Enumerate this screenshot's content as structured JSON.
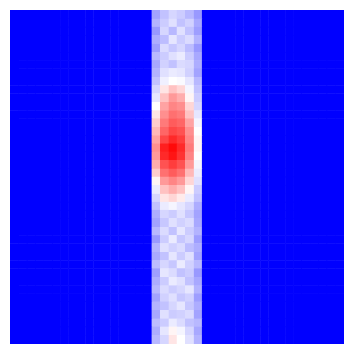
{
  "chart_data": {
    "type": "heatmap",
    "tick_labels": false,
    "zlim": [
      0,
      1
    ],
    "cells": [
      [
        0,
        0,
        0,
        0,
        0,
        0,
        0,
        0,
        0,
        0,
        0,
        0,
        0,
        0,
        0,
        0,
        0,
        0.32,
        0.38,
        0.42,
        0.4,
        0.36,
        0.3,
        0,
        0,
        0,
        0,
        0,
        0,
        0,
        0,
        0,
        0,
        0,
        0,
        0,
        0,
        0,
        0,
        0
      ],
      [
        0,
        0,
        0,
        0,
        0,
        0,
        0,
        0,
        0,
        0,
        0,
        0,
        0,
        0,
        0,
        0,
        0,
        0.35,
        0.4,
        0.44,
        0.38,
        0.41,
        0.33,
        0,
        0,
        0,
        0,
        0,
        0,
        0,
        0,
        0,
        0,
        0,
        0,
        0,
        0,
        0,
        0,
        0
      ],
      [
        0,
        0,
        0,
        0,
        0,
        0,
        0,
        0,
        0,
        0,
        0,
        0,
        0,
        0,
        0,
        0,
        0,
        0.3,
        0.42,
        0.36,
        0.44,
        0.38,
        0.31,
        0,
        0,
        0,
        0,
        0,
        0,
        0,
        0,
        0,
        0,
        0,
        0,
        0,
        0,
        0,
        0,
        0
      ],
      [
        0,
        0,
        0,
        0,
        0,
        0,
        0,
        0,
        0,
        0,
        0,
        0,
        0,
        0,
        0,
        0,
        0,
        0.34,
        0.37,
        0.45,
        0.4,
        0.43,
        0.35,
        0,
        0,
        0,
        0,
        0,
        0,
        0,
        0,
        0,
        0,
        0,
        0,
        0,
        0,
        0,
        0,
        0
      ],
      [
        0,
        0,
        0,
        0,
        0,
        0,
        0,
        0,
        0,
        0,
        0,
        0,
        0,
        0,
        0,
        0,
        0,
        0.31,
        0.43,
        0.39,
        0.42,
        0.37,
        0.3,
        0,
        0,
        0,
        0,
        0,
        0,
        0,
        0,
        0,
        0,
        0,
        0,
        0,
        0,
        0,
        0,
        0
      ],
      [
        0,
        0,
        0,
        0,
        0,
        0,
        0,
        0,
        0,
        0,
        0,
        0,
        0,
        0,
        0,
        0,
        0,
        0.36,
        0.4,
        0.44,
        0.46,
        0.4,
        0.33,
        0,
        0,
        0,
        0,
        0,
        0,
        0,
        0,
        0,
        0,
        0,
        0,
        0,
        0,
        0,
        0,
        0
      ],
      [
        0,
        0,
        0,
        0,
        0,
        0,
        0,
        0,
        0,
        0,
        0,
        0,
        0,
        0,
        0,
        0,
        0,
        0.33,
        0.41,
        0.38,
        0.43,
        0.42,
        0.34,
        0,
        0,
        0,
        0,
        0,
        0,
        0,
        0,
        0,
        0,
        0,
        0,
        0,
        0,
        0,
        0,
        0
      ],
      [
        0,
        0,
        0,
        0,
        0,
        0,
        0,
        0,
        0,
        0,
        0,
        0,
        0,
        0,
        0,
        0,
        0,
        0.35,
        0.44,
        0.46,
        0.45,
        0.41,
        0.32,
        0,
        0,
        0,
        0,
        0,
        0,
        0,
        0,
        0,
        0,
        0,
        0,
        0,
        0,
        0,
        0,
        0
      ],
      [
        0,
        0,
        0,
        0,
        0,
        0,
        0,
        0,
        0,
        0,
        0,
        0,
        0,
        0,
        0,
        0,
        0,
        0.38,
        0.47,
        0.5,
        0.49,
        0.45,
        0.36,
        0,
        0,
        0,
        0,
        0,
        0,
        0,
        0,
        0,
        0,
        0,
        0,
        0,
        0,
        0,
        0,
        0
      ],
      [
        0,
        0,
        0,
        0,
        0,
        0,
        0,
        0,
        0,
        0,
        0,
        0,
        0,
        0,
        0,
        0,
        0,
        0.42,
        0.55,
        0.62,
        0.58,
        0.48,
        0.38,
        0,
        0,
        0,
        0,
        0,
        0,
        0,
        0,
        0,
        0,
        0,
        0,
        0,
        0,
        0,
        0,
        0
      ],
      [
        0,
        0,
        0,
        0,
        0,
        0,
        0,
        0,
        0,
        0,
        0,
        0,
        0,
        0,
        0,
        0,
        0,
        0.45,
        0.62,
        0.7,
        0.66,
        0.52,
        0.4,
        0,
        0,
        0,
        0,
        0,
        0,
        0,
        0,
        0,
        0,
        0,
        0,
        0,
        0,
        0,
        0,
        0
      ],
      [
        0,
        0,
        0,
        0,
        0,
        0,
        0,
        0,
        0,
        0,
        0,
        0,
        0,
        0,
        0,
        0,
        0,
        0.5,
        0.68,
        0.74,
        0.72,
        0.58,
        0.42,
        0,
        0,
        0,
        0,
        0,
        0,
        0,
        0,
        0,
        0,
        0,
        0,
        0,
        0,
        0,
        0,
        0
      ],
      [
        0,
        0,
        0,
        0,
        0,
        0,
        0,
        0,
        0,
        0,
        0,
        0,
        0,
        0,
        0,
        0,
        0,
        0.55,
        0.72,
        0.78,
        0.76,
        0.62,
        0.45,
        0,
        0,
        0,
        0,
        0,
        0,
        0,
        0,
        0,
        0,
        0,
        0,
        0,
        0,
        0,
        0,
        0
      ],
      [
        0,
        0,
        0,
        0,
        0,
        0,
        0,
        0,
        0,
        0,
        0,
        0,
        0,
        0,
        0,
        0,
        0,
        0.6,
        0.76,
        0.82,
        0.8,
        0.68,
        0.48,
        0,
        0,
        0,
        0,
        0,
        0,
        0,
        0,
        0,
        0,
        0,
        0,
        0,
        0,
        0,
        0,
        0
      ],
      [
        0,
        0,
        0,
        0,
        0,
        0,
        0,
        0,
        0,
        0,
        0,
        0,
        0,
        0,
        0,
        0,
        0,
        0.64,
        0.8,
        0.86,
        0.84,
        0.72,
        0.5,
        0,
        0,
        0,
        0,
        0,
        0,
        0,
        0,
        0,
        0,
        0,
        0,
        0,
        0,
        0,
        0,
        0
      ],
      [
        0,
        0,
        0,
        0,
        0,
        0,
        0,
        0,
        0,
        0,
        0,
        0,
        0,
        0,
        0,
        0,
        0,
        0.68,
        0.86,
        0.92,
        0.88,
        0.74,
        0.52,
        0,
        0,
        0,
        0,
        0,
        0,
        0,
        0,
        0,
        0,
        0,
        0,
        0,
        0,
        0,
        0,
        0
      ],
      [
        0,
        0,
        0,
        0,
        0,
        0,
        0,
        0,
        0,
        0,
        0,
        0,
        0,
        0,
        0,
        0,
        0,
        0.72,
        0.94,
        0.98,
        0.92,
        0.76,
        0.52,
        0,
        0,
        0,
        0,
        0,
        0,
        0,
        0,
        0,
        0,
        0,
        0,
        0,
        0,
        0,
        0,
        0
      ],
      [
        0,
        0,
        0,
        0,
        0,
        0,
        0,
        0,
        0,
        0,
        0,
        0,
        0,
        0,
        0,
        0,
        0,
        0.7,
        0.92,
        0.96,
        0.9,
        0.74,
        0.5,
        0,
        0,
        0,
        0,
        0,
        0,
        0,
        0,
        0,
        0,
        0,
        0,
        0,
        0,
        0,
        0,
        0
      ],
      [
        0,
        0,
        0,
        0,
        0,
        0,
        0,
        0,
        0,
        0,
        0,
        0,
        0,
        0,
        0,
        0,
        0,
        0.66,
        0.84,
        0.88,
        0.84,
        0.7,
        0.48,
        0,
        0,
        0,
        0,
        0,
        0,
        0,
        0,
        0,
        0,
        0,
        0,
        0,
        0,
        0,
        0,
        0
      ],
      [
        0,
        0,
        0,
        0,
        0,
        0,
        0,
        0,
        0,
        0,
        0,
        0,
        0,
        0,
        0,
        0,
        0,
        0.6,
        0.78,
        0.82,
        0.78,
        0.64,
        0.46,
        0,
        0,
        0,
        0,
        0,
        0,
        0,
        0,
        0,
        0,
        0,
        0,
        0,
        0,
        0,
        0,
        0
      ],
      [
        0,
        0,
        0,
        0,
        0,
        0,
        0,
        0,
        0,
        0,
        0,
        0,
        0,
        0,
        0,
        0,
        0,
        0.52,
        0.7,
        0.74,
        0.7,
        0.58,
        0.44,
        0,
        0,
        0,
        0,
        0,
        0,
        0,
        0,
        0,
        0,
        0,
        0,
        0,
        0,
        0,
        0,
        0
      ],
      [
        0,
        0,
        0,
        0,
        0,
        0,
        0,
        0,
        0,
        0,
        0,
        0,
        0,
        0,
        0,
        0,
        0,
        0.46,
        0.62,
        0.66,
        0.62,
        0.52,
        0.4,
        0,
        0,
        0,
        0,
        0,
        0,
        0,
        0,
        0,
        0,
        0,
        0,
        0,
        0,
        0,
        0,
        0
      ],
      [
        0,
        0,
        0,
        0,
        0,
        0,
        0,
        0,
        0,
        0,
        0,
        0,
        0,
        0,
        0,
        0,
        0,
        0.42,
        0.55,
        0.58,
        0.54,
        0.46,
        0.38,
        0,
        0,
        0,
        0,
        0,
        0,
        0,
        0,
        0,
        0,
        0,
        0,
        0,
        0,
        0,
        0,
        0
      ],
      [
        0,
        0,
        0,
        0,
        0,
        0,
        0,
        0,
        0,
        0,
        0,
        0,
        0,
        0,
        0,
        0,
        0,
        0.38,
        0.46,
        0.48,
        0.45,
        0.42,
        0.34,
        0,
        0,
        0,
        0,
        0,
        0,
        0,
        0,
        0,
        0,
        0,
        0,
        0,
        0,
        0,
        0,
        0
      ],
      [
        0,
        0,
        0,
        0,
        0,
        0,
        0,
        0,
        0,
        0,
        0,
        0,
        0,
        0,
        0,
        0,
        0,
        0.34,
        0.42,
        0.4,
        0.44,
        0.39,
        0.32,
        0,
        0,
        0,
        0,
        0,
        0,
        0,
        0,
        0,
        0,
        0,
        0,
        0,
        0,
        0,
        0,
        0
      ],
      [
        0,
        0,
        0,
        0,
        0,
        0,
        0,
        0,
        0,
        0,
        0,
        0,
        0,
        0,
        0,
        0,
        0,
        0.32,
        0.39,
        0.44,
        0.41,
        0.43,
        0.33,
        0,
        0,
        0,
        0,
        0,
        0,
        0,
        0,
        0,
        0,
        0,
        0,
        0,
        0,
        0,
        0,
        0
      ],
      [
        0,
        0,
        0,
        0,
        0,
        0,
        0,
        0,
        0,
        0,
        0,
        0,
        0,
        0,
        0,
        0,
        0,
        0.36,
        0.43,
        0.38,
        0.45,
        0.4,
        0.35,
        0,
        0,
        0,
        0,
        0,
        0,
        0,
        0,
        0,
        0,
        0,
        0,
        0,
        0,
        0,
        0,
        0
      ],
      [
        0,
        0,
        0,
        0,
        0,
        0,
        0,
        0,
        0,
        0,
        0,
        0,
        0,
        0,
        0,
        0,
        0,
        0.3,
        0.4,
        0.46,
        0.39,
        0.42,
        0.31,
        0,
        0,
        0,
        0,
        0,
        0,
        0,
        0,
        0,
        0,
        0,
        0,
        0,
        0,
        0,
        0,
        0
      ],
      [
        0,
        0,
        0,
        0,
        0,
        0,
        0,
        0,
        0,
        0,
        0,
        0,
        0,
        0,
        0,
        0,
        0,
        0.35,
        0.44,
        0.41,
        0.43,
        0.37,
        0.34,
        0,
        0,
        0,
        0,
        0,
        0,
        0,
        0,
        0,
        0,
        0,
        0,
        0,
        0,
        0,
        0,
        0
      ],
      [
        0,
        0,
        0,
        0,
        0,
        0,
        0,
        0,
        0,
        0,
        0,
        0,
        0,
        0,
        0,
        0,
        0,
        0.33,
        0.38,
        0.45,
        0.4,
        0.44,
        0.32,
        0,
        0,
        0,
        0,
        0,
        0,
        0,
        0,
        0,
        0,
        0,
        0,
        0,
        0,
        0,
        0,
        0
      ],
      [
        0,
        0,
        0,
        0,
        0,
        0,
        0,
        0,
        0,
        0,
        0,
        0,
        0,
        0,
        0,
        0,
        0,
        0.37,
        0.42,
        0.39,
        0.46,
        0.41,
        0.36,
        0,
        0,
        0,
        0,
        0,
        0,
        0,
        0,
        0,
        0,
        0,
        0,
        0,
        0,
        0,
        0,
        0
      ],
      [
        0,
        0,
        0,
        0,
        0,
        0,
        0,
        0,
        0,
        0,
        0,
        0,
        0,
        0,
        0,
        0,
        0,
        0.31,
        0.45,
        0.43,
        0.38,
        0.4,
        0.3,
        0,
        0,
        0,
        0,
        0,
        0,
        0,
        0,
        0,
        0,
        0,
        0,
        0,
        0,
        0,
        0,
        0
      ],
      [
        0,
        0,
        0,
        0,
        0,
        0,
        0,
        0,
        0,
        0,
        0,
        0,
        0,
        0,
        0,
        0,
        0,
        0.34,
        0.4,
        0.46,
        0.44,
        0.38,
        0.33,
        0,
        0,
        0,
        0,
        0,
        0,
        0,
        0,
        0,
        0,
        0,
        0,
        0,
        0,
        0,
        0,
        0
      ],
      [
        0,
        0,
        0,
        0,
        0,
        0,
        0,
        0,
        0,
        0,
        0,
        0,
        0,
        0,
        0,
        0,
        0,
        0.36,
        0.43,
        0.4,
        0.42,
        0.45,
        0.35,
        0,
        0,
        0,
        0,
        0,
        0,
        0,
        0,
        0,
        0,
        0,
        0,
        0,
        0,
        0,
        0,
        0
      ],
      [
        0,
        0,
        0,
        0,
        0,
        0,
        0,
        0,
        0,
        0,
        0,
        0,
        0,
        0,
        0,
        0,
        0,
        0.32,
        0.41,
        0.44,
        0.39,
        0.41,
        0.31,
        0,
        0,
        0,
        0,
        0,
        0,
        0,
        0,
        0,
        0,
        0,
        0,
        0,
        0,
        0,
        0,
        0
      ],
      [
        0,
        0,
        0,
        0,
        0,
        0,
        0,
        0,
        0,
        0,
        0,
        0,
        0,
        0,
        0,
        0,
        0,
        0.35,
        0.38,
        0.42,
        0.45,
        0.39,
        0.34,
        0,
        0,
        0,
        0,
        0,
        0,
        0,
        0,
        0,
        0,
        0,
        0,
        0,
        0,
        0,
        0,
        0
      ],
      [
        0,
        0,
        0,
        0,
        0,
        0,
        0,
        0,
        0,
        0,
        0,
        0,
        0,
        0,
        0,
        0,
        0,
        0.33,
        0.44,
        0.4,
        0.41,
        0.43,
        0.32,
        0,
        0,
        0,
        0,
        0,
        0,
        0,
        0,
        0,
        0,
        0,
        0,
        0,
        0,
        0,
        0,
        0
      ],
      [
        0,
        0,
        0,
        0,
        0,
        0,
        0,
        0,
        0,
        0,
        0,
        0,
        0,
        0,
        0,
        0,
        0,
        0.37,
        0.4,
        0.46,
        0.43,
        0.38,
        0.36,
        0,
        0,
        0,
        0,
        0,
        0,
        0,
        0,
        0,
        0,
        0,
        0,
        0,
        0,
        0,
        0,
        0
      ],
      [
        0,
        0,
        0,
        0,
        0,
        0,
        0,
        0,
        0,
        0,
        0,
        0,
        0,
        0,
        0,
        0,
        0,
        0.34,
        0.45,
        0.52,
        0.48,
        0.42,
        0.33,
        0,
        0,
        0,
        0,
        0,
        0,
        0,
        0,
        0,
        0,
        0,
        0,
        0,
        0,
        0,
        0,
        0
      ],
      [
        0,
        0,
        0,
        0,
        0,
        0,
        0,
        0,
        0,
        0,
        0,
        0,
        0,
        0,
        0,
        0,
        0,
        0.36,
        0.42,
        0.55,
        0.5,
        0.44,
        0.35,
        0,
        0,
        0,
        0,
        0,
        0,
        0,
        0,
        0,
        0,
        0,
        0,
        0,
        0,
        0,
        0,
        0
      ]
    ]
  }
}
